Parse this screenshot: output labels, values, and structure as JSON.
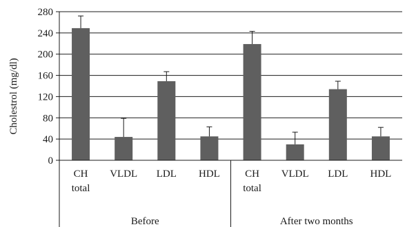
{
  "chart_data": {
    "type": "bar",
    "ylabel": "Cholestrol (mg/dl)",
    "xlabel": "",
    "title": "",
    "ylim": [
      0,
      280
    ],
    "yticks": [
      0,
      40,
      80,
      120,
      160,
      200,
      240,
      280
    ],
    "grid": "horizontal",
    "groups": [
      {
        "label": "Before",
        "categories": [
          "CH total",
          "VLDL",
          "LDL",
          "HDL"
        ]
      },
      {
        "label": "After two months",
        "categories": [
          "CH total",
          "VLDL",
          "LDL",
          "HDL"
        ]
      }
    ],
    "category_labels": [
      [
        "CH",
        "total"
      ],
      [
        "VLDL"
      ],
      [
        "LDL"
      ],
      [
        "HDL"
      ],
      [
        "CH",
        "total"
      ],
      [
        "VLDL"
      ],
      [
        "LDL"
      ],
      [
        "HDL"
      ]
    ],
    "values": [
      249,
      44,
      149,
      45,
      219,
      30,
      134,
      45
    ],
    "error_upper": [
      272,
      79,
      167,
      63,
      243,
      53,
      149,
      62
    ]
  },
  "colors": {
    "bar": "#5f5f5f",
    "axis": "#1a1a1a",
    "grid": "#1a1a1a"
  }
}
